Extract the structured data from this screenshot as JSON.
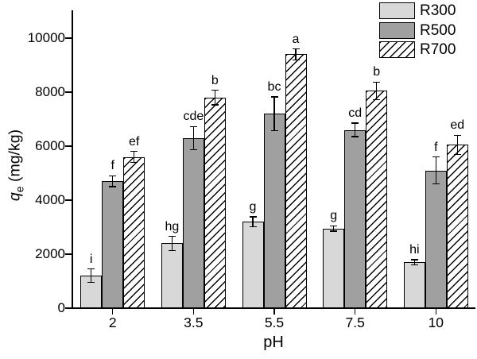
{
  "chart_data": {
    "type": "bar",
    "title": "",
    "categories": [
      "2",
      "3.5",
      "5.5",
      "7.5",
      "10"
    ],
    "xlabel": "pH",
    "ylabel": "qe (mg/kg)",
    "ylabel_parts": {
      "var": "q",
      "sub": "e",
      "unit": " (mg/kg)"
    },
    "yticks": [
      0,
      2000,
      4000,
      6000,
      8000,
      10000
    ],
    "ylim": [
      0,
      11000
    ],
    "grid": false,
    "legend_position": "top-right",
    "background": "#ffffff",
    "bar_edge_color": "#000000",
    "error_bar_color": "#000000",
    "series": [
      {
        "name": "R300",
        "pattern": "solid",
        "fill": "#d8d8d8",
        "values": [
          1200,
          2400,
          3200,
          2950,
          1700
        ],
        "errors": [
          250,
          260,
          180,
          100,
          90
        ],
        "sig_labels": [
          "i",
          "hg",
          "g",
          "g",
          "hi"
        ]
      },
      {
        "name": "R500",
        "pattern": "solid",
        "fill": "#a0a0a0",
        "values": [
          4700,
          6300,
          7200,
          6600,
          5100
        ],
        "errors": [
          200,
          430,
          620,
          250,
          500
        ],
        "sig_labels": [
          "f",
          "cde",
          "bc",
          "cd",
          "f"
        ]
      },
      {
        "name": "R700",
        "pattern": "hatch-forward-diagonal",
        "fill": "#ffffff",
        "values": [
          5600,
          7800,
          9400,
          8050,
          6050
        ],
        "errors": [
          200,
          270,
          200,
          320,
          350
        ],
        "sig_labels": [
          "ef",
          "b",
          "a",
          "b",
          "ed"
        ]
      }
    ]
  }
}
